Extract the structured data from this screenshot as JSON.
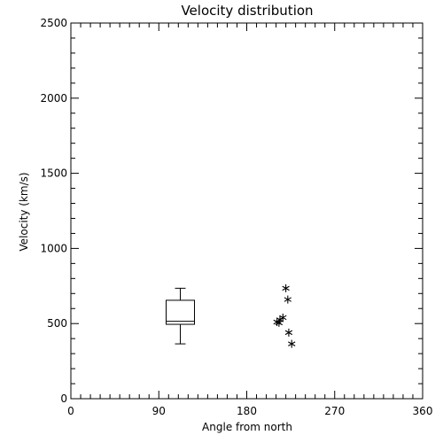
{
  "chart_data": {
    "type": "scatter",
    "title": "Velocity distribution",
    "xlabel": "Angle from north",
    "ylabel": "Velocity (km/s)",
    "xlim": [
      0,
      360
    ],
    "ylim": [
      0,
      2500
    ],
    "xticks": [
      0,
      90,
      180,
      270,
      360
    ],
    "yticks": [
      0,
      500,
      1000,
      1500,
      2000,
      2500
    ],
    "grid": false,
    "boxplot": {
      "x": 112,
      "min": 365,
      "q1": 495,
      "median": 515,
      "q3": 655,
      "max": 735
    },
    "points": [
      {
        "x": 220,
        "y": 735
      },
      {
        "x": 222,
        "y": 660
      },
      {
        "x": 217,
        "y": 540
      },
      {
        "x": 214,
        "y": 525
      },
      {
        "x": 211,
        "y": 510
      },
      {
        "x": 213,
        "y": 505
      },
      {
        "x": 223,
        "y": 440
      },
      {
        "x": 226,
        "y": 365
      }
    ]
  }
}
